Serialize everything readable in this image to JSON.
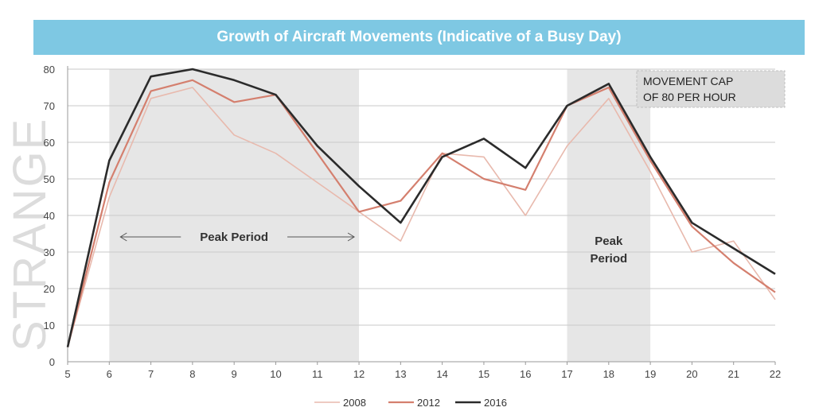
{
  "watermark": "STRANGE",
  "chart_data": {
    "type": "line",
    "title": "Growth of Aircraft Movements (Indicative of a Busy Day)",
    "xlabel": "",
    "ylabel": "",
    "x": [
      5,
      6,
      7,
      8,
      9,
      10,
      11,
      12,
      13,
      14,
      15,
      16,
      17,
      18,
      19,
      20,
      21,
      22
    ],
    "xlim": [
      5,
      22
    ],
    "ylim": [
      0,
      80
    ],
    "yticks": [
      0,
      10,
      20,
      30,
      40,
      50,
      60,
      70,
      80
    ],
    "grid": true,
    "legend_position": "bottom",
    "series": [
      {
        "name": "2008",
        "color": "#e8b9ad",
        "values": [
          4,
          45,
          72,
          75,
          62,
          57,
          49,
          41,
          33,
          57,
          56,
          40,
          59,
          72,
          52,
          30,
          33,
          17
        ]
      },
      {
        "name": "2012",
        "color": "#d47f6e",
        "values": [
          4,
          49,
          74,
          77,
          71,
          73,
          57,
          41,
          44,
          57,
          50,
          47,
          70,
          75,
          55,
          37,
          27,
          19
        ]
      },
      {
        "name": "2016",
        "color": "#2b2b2b",
        "values": [
          4,
          55,
          78,
          80,
          77,
          73,
          59,
          48,
          38,
          56,
          61,
          53,
          70,
          76,
          56,
          38,
          31,
          24
        ]
      }
    ],
    "shaded_regions": [
      {
        "from": 6,
        "to": 12,
        "label": "Peak Period"
      },
      {
        "from": 17,
        "to": 19,
        "label_lines": [
          "Peak",
          "Period"
        ]
      }
    ],
    "annotation": {
      "lines": [
        "MOVEMENT CAP",
        "OF 80 PER HOUR"
      ]
    }
  }
}
